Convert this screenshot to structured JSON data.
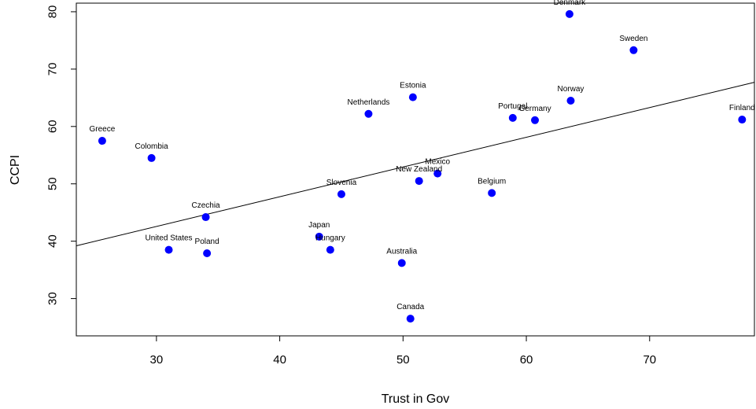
{
  "chart_data": {
    "type": "scatter",
    "title": "",
    "xlabel": "Trust in Gov",
    "ylabel": "CCPI",
    "xlim": [
      23.5,
      78.5
    ],
    "ylim": [
      23.5,
      81.5
    ],
    "x_ticks": [
      30,
      40,
      50,
      60,
      70
    ],
    "y_ticks": [
      30,
      40,
      50,
      60,
      70,
      80
    ],
    "grid": false,
    "point_color": "#0000ff",
    "line_color": "#000000",
    "trend_line": {
      "x": [
        23.5,
        78.5
      ],
      "y": [
        39.2,
        67.7
      ]
    },
    "points": [
      {
        "label": "Denmark",
        "x": 63.5,
        "y": 79.6
      },
      {
        "label": "Sweden",
        "x": 68.7,
        "y": 73.3
      },
      {
        "label": "Estonia",
        "x": 50.8,
        "y": 65.1
      },
      {
        "label": "Norway",
        "x": 63.6,
        "y": 64.5
      },
      {
        "label": "Netherlands",
        "x": 47.2,
        "y": 62.2
      },
      {
        "label": "Portugal",
        "x": 58.9,
        "y": 61.5
      },
      {
        "label": "Germany",
        "x": 60.7,
        "y": 61.1
      },
      {
        "label": "Finland",
        "x": 77.5,
        "y": 61.2
      },
      {
        "label": "Greece",
        "x": 25.6,
        "y": 57.5
      },
      {
        "label": "Colombia",
        "x": 29.6,
        "y": 54.5
      },
      {
        "label": "Mexico",
        "x": 52.8,
        "y": 51.8
      },
      {
        "label": "New Zealand",
        "x": 51.3,
        "y": 50.5
      },
      {
        "label": "Belgium",
        "x": 57.2,
        "y": 48.4
      },
      {
        "label": "Slovenia",
        "x": 45.0,
        "y": 48.2
      },
      {
        "label": "Czechia",
        "x": 34.0,
        "y": 44.2
      },
      {
        "label": "Japan",
        "x": 43.2,
        "y": 40.8
      },
      {
        "label": "United States",
        "x": 31.0,
        "y": 38.5
      },
      {
        "label": "Hungary",
        "x": 44.1,
        "y": 38.5
      },
      {
        "label": "Poland",
        "x": 34.1,
        "y": 37.9
      },
      {
        "label": "Australia",
        "x": 49.9,
        "y": 36.2
      },
      {
        "label": "Canada",
        "x": 50.6,
        "y": 26.5
      }
    ]
  }
}
